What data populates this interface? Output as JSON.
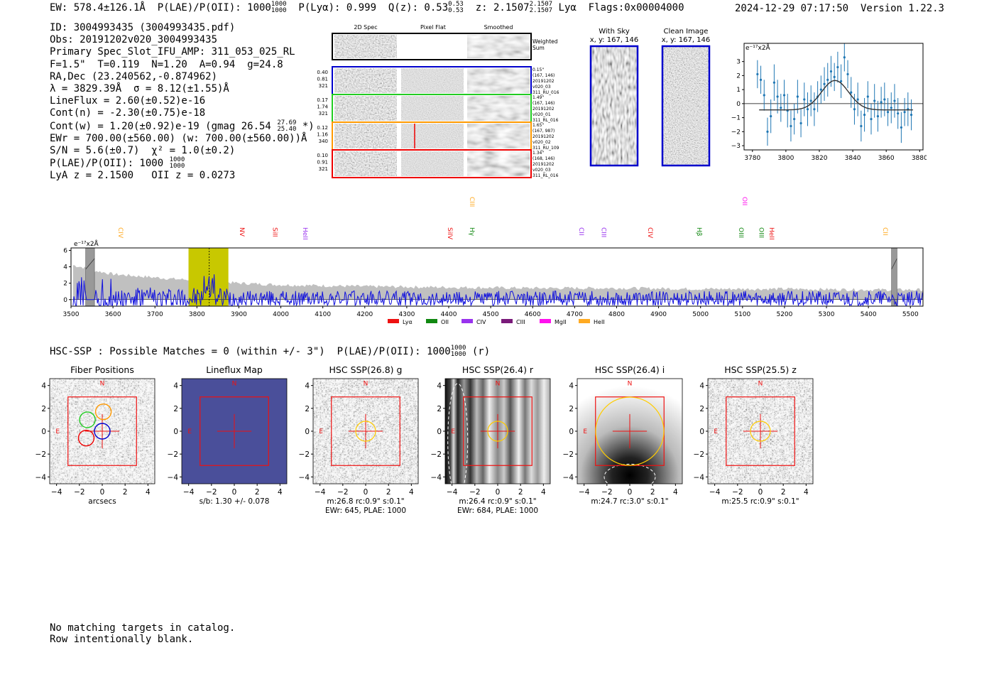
{
  "header": {
    "ew": "EW: 578.4±126.1Å",
    "plae_label": "P(LAE)/P(OII): 1000",
    "plae_hi": "1000",
    "plae_lo": "1000",
    "plya": "P(Lyα): 0.999",
    "qz": "Q(z): 0.53",
    "qz_hi": "0.53",
    "qz_lo": "0.53",
    "z": "z: 2.1507",
    "z_hi": "2.1507",
    "z_lo": "2.1507",
    "z_line": "Lyα",
    "flags": "Flags:0x00004000",
    "datetime": "2024-12-29 07:17:50",
    "version": "Version 1.22.3"
  },
  "info": {
    "id": "ID: 3004993435 (3004993435.pdf)",
    "obs": "Obs: 20191202v020_3004993435",
    "primary": "Primary Spec_Slot_IFU_AMP: 311_053_025_RL",
    "params": "F=1.5\"  T=0.119  N=1.20  A=0.94  g=24.8",
    "radec": "RA,Dec (23.240562,-0.874962)",
    "lambda": "λ = 3829.39Å  σ = 8.12(±1.55)Å",
    "lineflux": "LineFlux = 2.60(±0.52)e-16",
    "contn": "Cont(n) = -2.30(±0.75)e-18",
    "contw": "Cont(w) = 1.20(±0.92)e-19 (gmag 26.54",
    "contw_hi": "27.69",
    "contw_lo": "25.40",
    "contw_end": "*)",
    "ewr": "EWr = 700.00(±560.00) (w: 700.00(±560.00))Å",
    "sn": "S/N = 5.6(±0.7)  χ² = 1.0(±0.2)",
    "plae": "P(LAE)/P(OII): 1000",
    "plae_hi": "1000",
    "plae_lo": "1000",
    "zline": "LyA z = 2.1500   OII z = 0.0273"
  },
  "cutouts_2d": {
    "col_headers": [
      "2D Spec",
      "Pixel Flat",
      "Smoothed"
    ],
    "weighted_label": [
      "Weighted",
      "Sum"
    ],
    "rows": [
      {
        "left": [
          "0.40",
          "0.81",
          "321"
        ],
        "right": [
          "0.15\"",
          "(167, 146)",
          "20191202",
          "v020_03",
          "311_RU_016"
        ],
        "color": "#0000cc"
      },
      {
        "left": [
          "0.17",
          "1.74",
          "321"
        ],
        "right": [
          "1.49\"",
          "(167, 146)",
          "20191202",
          "v020_01",
          "311_RL_016"
        ],
        "color": "#22cc22"
      },
      {
        "left": [
          "0.12",
          "1.16",
          "340"
        ],
        "right": [
          "1.65\"",
          "(167, 987)",
          "20191202",
          "v020_02",
          "311_RU_109"
        ],
        "color": "#ff9900"
      },
      {
        "left": [
          "0.10",
          "0.91",
          "321"
        ],
        "right": [
          "1.34\"",
          "(168, 146)",
          "20191202",
          "v020_03",
          "311_RL_016"
        ],
        "color": "#ee0000"
      }
    ]
  },
  "sky_panels": {
    "with_sky": [
      "With Sky",
      "x, y: 167, 146"
    ],
    "clean": [
      "Clean Image",
      "x, y: 167, 146"
    ]
  },
  "zoom_chart": {
    "ylabel": "e⁻¹⁷x2Å",
    "xticks": [
      "3780",
      "3800",
      "3820",
      "3840",
      "3860",
      "3880"
    ],
    "yticks": [
      "3",
      "2",
      "1",
      "0",
      "−1",
      "−2",
      "−3"
    ]
  },
  "chart_data": [
    {
      "type": "scatter",
      "title": "",
      "ylabel": "e⁻¹⁷x2Å",
      "xlim": [
        3775,
        3882
      ],
      "ylim": [
        -3.3,
        4.3
      ],
      "x": [
        3783,
        3785,
        3787,
        3789,
        3791,
        3793,
        3795,
        3797,
        3799,
        3801,
        3803,
        3805,
        3807,
        3809,
        3811,
        3813,
        3815,
        3817,
        3819,
        3821,
        3823,
        3825,
        3827,
        3829,
        3831,
        3833,
        3835,
        3837,
        3839,
        3841,
        3843,
        3845,
        3847,
        3849,
        3851,
        3853,
        3855,
        3857,
        3859,
        3861,
        3863,
        3865,
        3867,
        3869,
        3871,
        3873,
        3875
      ],
      "y": [
        2.1,
        1.7,
        0.6,
        -2.0,
        -0.9,
        1.5,
        0.5,
        -0.3,
        0.6,
        -0.5,
        -1.6,
        -1.1,
        0.5,
        -1.4,
        0.3,
        -0.4,
        0.2,
        -0.4,
        0.5,
        1.0,
        1.4,
        1.7,
        2.3,
        1.9,
        2.6,
        1.6,
        3.3,
        2.1,
        0.8,
        -0.4,
        0.3,
        -1.6,
        -0.8,
        0.5,
        -1.1,
        0.2,
        -0.9,
        0.1,
        0.3,
        -0.6,
        -0.3,
        0.2,
        -0.7,
        -1.7,
        -0.6,
        -0.4,
        -0.8
      ],
      "err": [
        1.0,
        1.0,
        1.1,
        1.0,
        1.2,
        1.3,
        1.2,
        1.0,
        1.1,
        1.2,
        1.1,
        1.1,
        1.2,
        1.0,
        1.2,
        1.2,
        1.1,
        1.2,
        1.1,
        1.0,
        1.2,
        1.2,
        1.1,
        1.0,
        1.1,
        1.2,
        1.0,
        1.0,
        1.1,
        1.1,
        1.2,
        1.1,
        1.2,
        1.1,
        1.1,
        1.2,
        1.1,
        1.1,
        1.2,
        1.0,
        1.1,
        1.2,
        1.1,
        1.1,
        1.0,
        1.2,
        1.1
      ],
      "model": {
        "center": 3829.39,
        "sigma": 8.12,
        "amp": 2.1,
        "base": -0.45,
        "x_range": [
          3784,
          3876
        ]
      }
    },
    {
      "type": "line",
      "title": "",
      "ylabel": "e⁻¹⁷x2Å",
      "xlim": [
        3500,
        5530
      ],
      "ylim": [
        -0.8,
        6.3
      ],
      "xticks": [
        3500,
        3600,
        3700,
        3800,
        3900,
        4000,
        4100,
        4200,
        4300,
        4400,
        4500,
        4600,
        4700,
        4800,
        4900,
        5000,
        5100,
        5200,
        5300,
        5400,
        5500
      ],
      "yticks": [
        0,
        2,
        4,
        6
      ],
      "highlight_band": [
        3780,
        3875
      ],
      "highlight_center": 3829.39,
      "masked_regions": [
        [
          3535,
          3556
        ],
        [
          5455,
          5468
        ]
      ],
      "error_envelope": {
        "x": [
          3505,
          3540,
          3560,
          3600,
          3650,
          3700,
          3750,
          3800,
          3850,
          3900,
          4000,
          4200,
          4400,
          4600,
          4800,
          5000,
          5200,
          5400,
          5530
        ],
        "y": [
          4.2,
          3.8,
          3.5,
          3.1,
          2.9,
          2.7,
          2.5,
          2.4,
          2.2,
          2.0,
          1.8,
          1.6,
          1.5,
          1.4,
          1.4,
          1.3,
          1.3,
          1.2,
          1.2
        ]
      },
      "legend": [
        {
          "name": "Lyα",
          "color": "#ee1111"
        },
        {
          "name": "OII",
          "color": "#118811"
        },
        {
          "name": "CIV",
          "color": "#9933ee"
        },
        {
          "name": "CIII",
          "color": "#7a1a7a"
        },
        {
          "name": "MgII",
          "color": "#ff11ee"
        },
        {
          "name": "HeII",
          "color": "#ffaa22"
        }
      ],
      "line_labels": [
        {
          "label": "CIV",
          "wave": 3618,
          "color": "#ffaa22",
          "row": 1
        },
        {
          "label": "NV",
          "wave": 3908,
          "color": "#ee1111",
          "row": 1
        },
        {
          "label": "SiII",
          "wave": 3986,
          "color": "#ee1111",
          "row": 1
        },
        {
          "label": "HeII",
          "wave": 4058,
          "color": "#9933ee",
          "row": 1
        },
        {
          "label": "SiIV",
          "wave": 4403,
          "color": "#ee1111",
          "row": 1
        },
        {
          "label": "CIII",
          "wave": 4456,
          "color": "#ffaa22",
          "row": 0
        },
        {
          "label": "Hγ",
          "wave": 4456,
          "color": "#118811",
          "row": 1
        },
        {
          "label": "CII",
          "wave": 4716,
          "color": "#9933ee",
          "row": 1
        },
        {
          "label": "CIII",
          "wave": 4770,
          "color": "#9933ee",
          "row": 1
        },
        {
          "label": "CIV",
          "wave": 4880,
          "color": "#ee1111",
          "row": 1
        },
        {
          "label": "Hβ",
          "wave": 4997,
          "color": "#118811",
          "row": 1
        },
        {
          "label": "OII",
          "wave": 5105,
          "color": "#ff11ee",
          "row": 0
        },
        {
          "label": "OIII",
          "wave": 5097,
          "color": "#118811",
          "row": 1
        },
        {
          "label": "OIII",
          "wave": 5145,
          "color": "#118811",
          "row": 1
        },
        {
          "label": "HeII",
          "wave": 5170,
          "color": "#ee1111",
          "row": 1
        },
        {
          "label": "CII",
          "wave": 5440,
          "color": "#ffaa22",
          "row": 1
        }
      ]
    }
  ],
  "hsc": {
    "summary": "HSC-SSP : Possible Matches = 0 (within +/- 3\")  P(LAE)/P(OII): 1000",
    "summary_hi": "1000",
    "summary_lo": "1000",
    "summary_band": "(r)",
    "axis_ticks": [
      "4",
      "2",
      "0",
      "−2",
      "−4"
    ],
    "x_ticks": [
      "−4",
      "−2",
      "0",
      "2",
      "4"
    ],
    "panels": [
      {
        "title": "Fiber Positions",
        "captions": [
          "arcsecs"
        ],
        "kind": "fiber",
        "n": "N",
        "e": "E"
      },
      {
        "title": "Lineflux Map",
        "captions": [
          "s/b: 1.30 +/- 0.078"
        ],
        "kind": "lineflux",
        "n": "N",
        "e": "E"
      },
      {
        "title": "HSC SSP(26.8) g",
        "captions": [
          "m:26.8 rc:0.9\"  s:0.1\"",
          "EWr: 645, PLAE: 1000"
        ],
        "kind": "noise",
        "n": "N",
        "e": "E"
      },
      {
        "title": "HSC SSP(26.4) r",
        "captions": [
          "m:26.4 rc:0.9\"  s:0.1\"",
          "EWr: 684, PLAE: 1000"
        ],
        "kind": "stripes",
        "n": "N",
        "e": "E"
      },
      {
        "title": "HSC SSP(26.4) i",
        "captions": [
          "m:24.7 rc:3.0\"  s:0.1\""
        ],
        "kind": "gradient",
        "n": "N",
        "e": "E"
      },
      {
        "title": "HSC SSP(25.5) z",
        "captions": [
          "m:25.5 rc:0.9\"  s:0.1\""
        ],
        "kind": "noise",
        "n": "N",
        "e": "E"
      }
    ]
  },
  "footer": {
    "line1": "No matching targets in catalog.",
    "line2": "Row intentionally blank."
  },
  "colors": {
    "spectrum": "#1010dd",
    "envelope": "#c0c0c0",
    "band": "#c8c800",
    "zoom_points": "#1f77b4",
    "model": "#333333",
    "aperture": "#ffcc00",
    "crosshair": "#ee1111"
  }
}
